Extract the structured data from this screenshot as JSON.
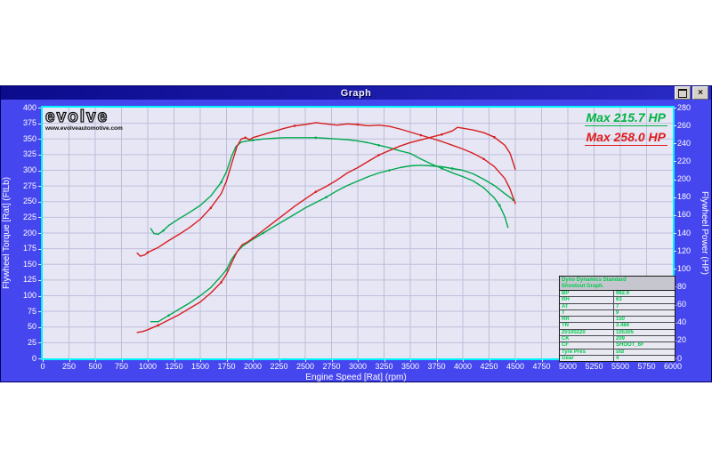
{
  "window": {
    "title": "Graph",
    "close_glyph": "×"
  },
  "logo": {
    "name": "evolve",
    "url": "www.evolveautomotive.com"
  },
  "chart_data": {
    "type": "line",
    "title": "Graph",
    "xlabel": "Engine Speed [Rat] (rpm)",
    "ylabel_left": "Flywheel Torque [Rat] (FtLb)",
    "ylabel_right": "Flywheel Power (HP)",
    "xlim": [
      0,
      6000
    ],
    "x_tick_step": 250,
    "ylim_left": [
      0,
      400
    ],
    "y_tick_step_left": 25,
    "ylim_right": [
      0,
      280
    ],
    "y_tick_step_right": 20,
    "grid": true,
    "legend_position": "top-right",
    "legend": [
      {
        "label": "Max 215.7 HP",
        "color": "#00b441"
      },
      {
        "label": "Max 258.0 HP",
        "color": "#e01c1c"
      }
    ],
    "series": [
      {
        "name": "green-power",
        "axis": "right",
        "color": "#00a84e",
        "max": 215.7,
        "points": [
          [
            1030,
            41
          ],
          [
            1070,
            41
          ],
          [
            1100,
            41
          ],
          [
            1200,
            48
          ],
          [
            1300,
            55
          ],
          [
            1400,
            62
          ],
          [
            1500,
            70
          ],
          [
            1600,
            79
          ],
          [
            1700,
            92
          ],
          [
            1750,
            99
          ],
          [
            1800,
            111
          ],
          [
            1850,
            119
          ],
          [
            1900,
            125
          ],
          [
            1950,
            129
          ],
          [
            2000,
            133
          ],
          [
            2100,
            140
          ],
          [
            2200,
            147
          ],
          [
            2300,
            154
          ],
          [
            2400,
            161
          ],
          [
            2500,
            168
          ],
          [
            2600,
            174
          ],
          [
            2700,
            180
          ],
          [
            2800,
            187
          ],
          [
            2900,
            193
          ],
          [
            3000,
            198
          ],
          [
            3100,
            203
          ],
          [
            3200,
            207
          ],
          [
            3300,
            210
          ],
          [
            3400,
            213
          ],
          [
            3500,
            215
          ],
          [
            3600,
            215.7
          ],
          [
            3700,
            215
          ],
          [
            3800,
            214
          ],
          [
            3900,
            212
          ],
          [
            4000,
            210
          ],
          [
            4100,
            206
          ],
          [
            4200,
            200
          ],
          [
            4300,
            193
          ],
          [
            4400,
            184
          ],
          [
            4480,
            177
          ]
        ]
      },
      {
        "name": "green-torque",
        "axis": "left",
        "color": "#00a84e",
        "points": [
          [
            1030,
            207
          ],
          [
            1060,
            199
          ],
          [
            1100,
            198
          ],
          [
            1150,
            204
          ],
          [
            1200,
            212
          ],
          [
            1300,
            223
          ],
          [
            1400,
            233
          ],
          [
            1500,
            244
          ],
          [
            1600,
            259
          ],
          [
            1700,
            281
          ],
          [
            1750,
            298
          ],
          [
            1800,
            323
          ],
          [
            1840,
            338
          ],
          [
            1890,
            345
          ],
          [
            1950,
            347
          ],
          [
            2000,
            348
          ],
          [
            2100,
            350
          ],
          [
            2200,
            351
          ],
          [
            2300,
            352
          ],
          [
            2400,
            352
          ],
          [
            2500,
            352
          ],
          [
            2600,
            352
          ],
          [
            2700,
            351
          ],
          [
            2800,
            350
          ],
          [
            2900,
            349
          ],
          [
            3000,
            347
          ],
          [
            3100,
            344
          ],
          [
            3200,
            340
          ],
          [
            3300,
            336
          ],
          [
            3400,
            331
          ],
          [
            3500,
            327
          ],
          [
            3600,
            318
          ],
          [
            3700,
            310
          ],
          [
            3800,
            303
          ],
          [
            3900,
            296
          ],
          [
            4000,
            290
          ],
          [
            4100,
            283
          ],
          [
            4200,
            272
          ],
          [
            4300,
            256
          ],
          [
            4350,
            244
          ],
          [
            4400,
            226
          ],
          [
            4430,
            209
          ]
        ]
      },
      {
        "name": "red-power",
        "axis": "right",
        "color": "#d81e1e",
        "max": 258.0,
        "points": [
          [
            900,
            29
          ],
          [
            950,
            30
          ],
          [
            1000,
            32
          ],
          [
            1100,
            37
          ],
          [
            1200,
            43
          ],
          [
            1300,
            49
          ],
          [
            1400,
            56
          ],
          [
            1500,
            63
          ],
          [
            1600,
            73
          ],
          [
            1700,
            85
          ],
          [
            1750,
            94
          ],
          [
            1800,
            107
          ],
          [
            1850,
            119
          ],
          [
            1900,
            127
          ],
          [
            1950,
            130
          ],
          [
            2000,
            134
          ],
          [
            2100,
            143
          ],
          [
            2200,
            152
          ],
          [
            2300,
            161
          ],
          [
            2400,
            170
          ],
          [
            2500,
            178
          ],
          [
            2600,
            186
          ],
          [
            2700,
            192
          ],
          [
            2800,
            199
          ],
          [
            2900,
            207
          ],
          [
            3000,
            213
          ],
          [
            3100,
            220
          ],
          [
            3200,
            227
          ],
          [
            3300,
            232
          ],
          [
            3400,
            237
          ],
          [
            3500,
            241
          ],
          [
            3600,
            244
          ],
          [
            3700,
            247
          ],
          [
            3800,
            250
          ],
          [
            3900,
            254
          ],
          [
            3950,
            258
          ],
          [
            4000,
            257
          ],
          [
            4100,
            255
          ],
          [
            4200,
            252
          ],
          [
            4300,
            247
          ],
          [
            4400,
            238
          ],
          [
            4450,
            229
          ],
          [
            4500,
            211
          ]
        ]
      },
      {
        "name": "red-torque",
        "axis": "left",
        "color": "#d81e1e",
        "points": [
          [
            900,
            168
          ],
          [
            930,
            163
          ],
          [
            970,
            165
          ],
          [
            1000,
            169
          ],
          [
            1100,
            177
          ],
          [
            1200,
            188
          ],
          [
            1300,
            198
          ],
          [
            1400,
            209
          ],
          [
            1500,
            222
          ],
          [
            1600,
            240
          ],
          [
            1700,
            263
          ],
          [
            1750,
            283
          ],
          [
            1800,
            311
          ],
          [
            1850,
            338
          ],
          [
            1890,
            350
          ],
          [
            1930,
            352
          ],
          [
            1970,
            349
          ],
          [
            2000,
            352
          ],
          [
            2100,
            357
          ],
          [
            2200,
            362
          ],
          [
            2300,
            367
          ],
          [
            2400,
            371
          ],
          [
            2500,
            373
          ],
          [
            2600,
            376
          ],
          [
            2700,
            374
          ],
          [
            2800,
            372
          ],
          [
            2900,
            374
          ],
          [
            3000,
            373
          ],
          [
            3100,
            371
          ],
          [
            3200,
            372
          ],
          [
            3300,
            370
          ],
          [
            3400,
            366
          ],
          [
            3500,
            361
          ],
          [
            3600,
            356
          ],
          [
            3700,
            351
          ],
          [
            3800,
            346
          ],
          [
            3900,
            340
          ],
          [
            4000,
            334
          ],
          [
            4100,
            327
          ],
          [
            4200,
            318
          ],
          [
            4300,
            306
          ],
          [
            4400,
            287
          ],
          [
            4450,
            270
          ],
          [
            4500,
            247
          ]
        ]
      }
    ]
  },
  "info_table": {
    "header_line1": "Dyno Dynamics Standard",
    "header_line2": "Shootout Graph.",
    "rows": [
      [
        "BP",
        "982.9"
      ],
      [
        "RH",
        "63"
      ],
      [
        "AT",
        "7"
      ],
      [
        "T",
        "9"
      ],
      [
        "RR",
        "150"
      ],
      [
        "TN",
        "3.484"
      ],
      [
        "20100220",
        "105305"
      ],
      [
        "CK",
        "209"
      ],
      [
        "CF",
        "SHOOT_6F"
      ],
      [
        "Tyre Pres",
        "std"
      ],
      [
        "Gear",
        "4"
      ]
    ]
  }
}
